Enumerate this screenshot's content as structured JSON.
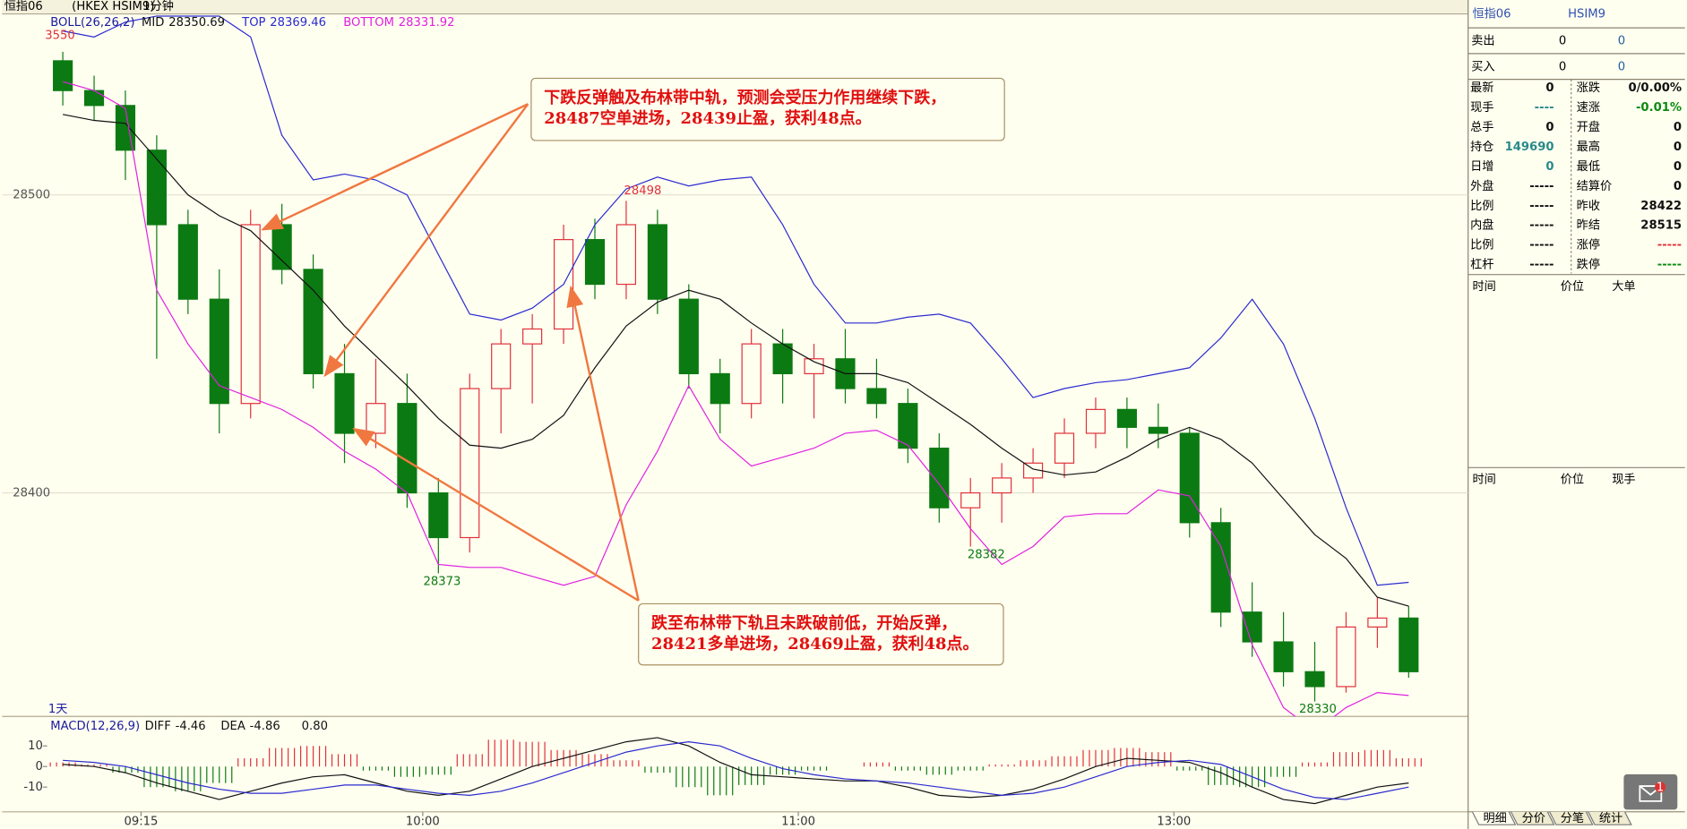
{
  "toolbar": {
    "symbol": "恒指06",
    "code": "(HKEX HSIM9)",
    "period": "1分钟"
  },
  "chart_data": {
    "type": "candlestick",
    "indicator": "BOLL(26,26,2)",
    "candles": {
      "open": [
        28545,
        28535,
        28530,
        28515,
        28490,
        28465,
        28430,
        28490,
        28475,
        28440,
        28420,
        28430,
        28400,
        28385,
        28435,
        28450,
        28455,
        28485,
        28470,
        28490,
        28465,
        28440,
        28430,
        28450,
        28440,
        28445,
        28435,
        28430,
        28415,
        28395,
        28400,
        28405,
        28410,
        28420,
        28428,
        28422,
        28420,
        28390,
        28360,
        28350,
        28340,
        28335,
        28355,
        28358
      ],
      "high": [
        28548,
        28540,
        28535,
        28520,
        28495,
        28475,
        28495,
        28497,
        28480,
        28450,
        28445,
        28440,
        28405,
        28440,
        28455,
        28460,
        28490,
        28492,
        28498,
        28495,
        28470,
        28445,
        28455,
        28455,
        28450,
        28455,
        28445,
        28435,
        28420,
        28405,
        28410,
        28415,
        28425,
        28432,
        28432,
        28430,
        28422,
        28395,
        28370,
        28360,
        28350,
        28360,
        28365,
        28362
      ],
      "low": [
        28530,
        28525,
        28505,
        28445,
        28460,
        28420,
        28425,
        28470,
        28435,
        28410,
        28415,
        28395,
        28373,
        28380,
        28420,
        28430,
        28450,
        28465,
        28465,
        28460,
        28435,
        28420,
        28425,
        28430,
        28425,
        28430,
        28425,
        28410,
        28390,
        28382,
        28390,
        28400,
        28405,
        28415,
        28415,
        28415,
        28385,
        28355,
        28345,
        28335,
        28330,
        28333,
        28348,
        28338
      ],
      "close": [
        28535,
        28530,
        28515,
        28490,
        28465,
        28430,
        28490,
        28475,
        28440,
        28420,
        28430,
        28400,
        28385,
        28435,
        28450,
        28455,
        28485,
        28470,
        28490,
        28465,
        28440,
        28430,
        28450,
        28440,
        28445,
        28435,
        28430,
        28415,
        28395,
        28400,
        28405,
        28410,
        28420,
        28428,
        28422,
        28420,
        28390,
        28360,
        28350,
        28340,
        28335,
        28355,
        28358,
        28340
      ],
      "up_color": "#e0303a",
      "down_color": "#0c7a12"
    },
    "series": [
      {
        "name": "MID",
        "last": 28350.69,
        "color": "#111111",
        "values": [
          28527,
          28525,
          28524,
          28512,
          28500,
          28493,
          28488,
          28478,
          28468,
          28456,
          28446,
          28436,
          28425,
          28416,
          28415,
          28418,
          28426,
          28442,
          28456,
          28464,
          28468,
          28465,
          28457,
          28450,
          28444,
          28440,
          28440,
          28437,
          28430,
          28423,
          28415,
          28408,
          28406,
          28407,
          28412,
          28418,
          28422,
          28418,
          28410,
          28398,
          28386,
          28378,
          28365,
          28362
        ]
      },
      {
        "name": "TOP",
        "last": 28369.46,
        "color": "#2a2ad0",
        "values": [
          28555,
          28553,
          28558,
          28560,
          28560,
          28560,
          28553,
          28520,
          28505,
          28507,
          28505,
          28500,
          28480,
          28460,
          28458,
          28462,
          28470,
          28490,
          28502,
          28506,
          28503,
          28505,
          28506,
          28490,
          28470,
          28457,
          28457,
          28459,
          28460,
          28457,
          28445,
          28432,
          28435,
          28437,
          28438,
          28440,
          28442,
          28452,
          28465,
          28450,
          28425,
          28395,
          28369,
          28370
        ]
      },
      {
        "name": "BOTTOM",
        "last": 28331.92,
        "color": "#e020e0",
        "values": [
          28538,
          28535,
          28529,
          28468,
          28450,
          28436,
          28432,
          28428,
          28422,
          28414,
          28408,
          28400,
          28376,
          28375,
          28375,
          28372,
          28369,
          28372,
          28396,
          28414,
          28436,
          28418,
          28409,
          28412,
          28415,
          28420,
          28421,
          28416,
          28403,
          28388,
          28376,
          28382,
          28392,
          28393,
          28393,
          28401,
          28399,
          28382,
          28349,
          28328,
          28320,
          28328,
          28333,
          28332
        ]
      }
    ],
    "ylim": [
      28325,
      28560
    ],
    "yticks": [
      28400,
      28500
    ],
    "grid": true,
    "xlim": [
      0,
      227
    ],
    "xticks": [
      {
        "value": 15,
        "label": "09:15"
      },
      {
        "value": 60,
        "label": "10:00"
      },
      {
        "value": 120,
        "label": "11:00"
      },
      {
        "value": 180,
        "label": "13:00"
      }
    ],
    "price_labels": [
      28498,
      28373,
      28382,
      28330
    ],
    "clipped_label": "3550",
    "range_label": "1天",
    "annotations": [
      {
        "lines": [
          "下跌反弹触及布林带中轨，预测会受压力作用继续下跌，",
          "28487空单进场，28439止盈，获利48点。"
        ]
      },
      {
        "lines": [
          "跌至布林带下轨且未跌破前低，开始反弹，",
          "28421多单进场，28469止盈，获利48点。"
        ]
      }
    ],
    "macd": {
      "indicator": "MACD(12,26,9)",
      "ylim": [
        -22,
        16
      ],
      "yticks": [
        10,
        0,
        -10
      ],
      "hist": {
        "last": 0.8,
        "last_label": "0.80",
        "up_color": "#e0303a",
        "down_color": "#0c7a12",
        "values": [
          2,
          1,
          -3,
          -10,
          -12,
          -8,
          4,
          9,
          10,
          6,
          -2,
          -5,
          -4,
          6,
          13,
          12,
          8,
          6,
          3,
          -3,
          -10,
          -14,
          -9,
          -4,
          -2,
          0,
          2,
          -2,
          -4,
          -2,
          1,
          3,
          5,
          8,
          9,
          7,
          -2,
          -9,
          -10,
          -5,
          2,
          7,
          8,
          4
        ]
      },
      "series": [
        {
          "name": "DIFF",
          "last": -4.46,
          "color": "#111111",
          "values": [
            1,
            0,
            -3,
            -8,
            -12,
            -16,
            -12,
            -8,
            -5,
            -4,
            -8,
            -12,
            -14,
            -12,
            -6,
            0,
            4,
            8,
            12,
            14,
            10,
            2,
            -4,
            -5,
            -6,
            -7,
            -7,
            -10,
            -14,
            -15,
            -14,
            -11,
            -6,
            0,
            4,
            3,
            2,
            -3,
            -10,
            -16,
            -18,
            -14,
            -10,
            -8
          ]
        },
        {
          "name": "DEA",
          "last": -4.86,
          "color": "#2a2ad0",
          "values": [
            3,
            2,
            0,
            -4,
            -8,
            -11,
            -13,
            -13,
            -11,
            -9,
            -9,
            -11,
            -13,
            -14,
            -12,
            -8,
            -3,
            2,
            7,
            10,
            12,
            10,
            4,
            -1,
            -4,
            -6,
            -7,
            -8,
            -10,
            -12,
            -14,
            -13,
            -10,
            -5,
            0,
            2,
            3,
            1,
            -5,
            -11,
            -15,
            -16,
            -13,
            -10
          ]
        }
      ]
    }
  },
  "quote_panel": {
    "title": "恒指06",
    "code": "HSIM9",
    "book": [
      {
        "label": "卖出",
        "price": "0",
        "qty": "0"
      },
      {
        "label": "买入",
        "price": "0",
        "qty": "0"
      }
    ],
    "left": [
      [
        "最新",
        "0"
      ],
      [
        "现手",
        "----"
      ],
      [
        "总手",
        "0"
      ],
      [
        "持仓",
        "149690"
      ],
      [
        "日增",
        "0"
      ],
      [
        "外盘",
        "-----"
      ],
      [
        "比例",
        "-----"
      ],
      [
        "内盘",
        "-----"
      ],
      [
        "比例",
        "-----"
      ],
      [
        "杠杆",
        "-----"
      ]
    ],
    "right": [
      [
        "涨跌",
        "0/0.00%"
      ],
      [
        "速涨",
        "-0.01%"
      ],
      [
        "开盘",
        "0"
      ],
      [
        "最高",
        "0"
      ],
      [
        "最低",
        "0"
      ],
      [
        "结算价",
        "0"
      ],
      [
        "昨收",
        "28422"
      ],
      [
        "昨结",
        "28515"
      ],
      [
        "涨停",
        "-----"
      ],
      [
        "跌停",
        "-----"
      ]
    ],
    "big_orders_header": [
      "时间",
      "价位",
      "大单"
    ],
    "ticks_header": [
      "时间",
      "价位",
      "现手"
    ],
    "tabs": [
      "明细",
      "分价",
      "分笔",
      "统计"
    ],
    "notification_count": "1"
  }
}
